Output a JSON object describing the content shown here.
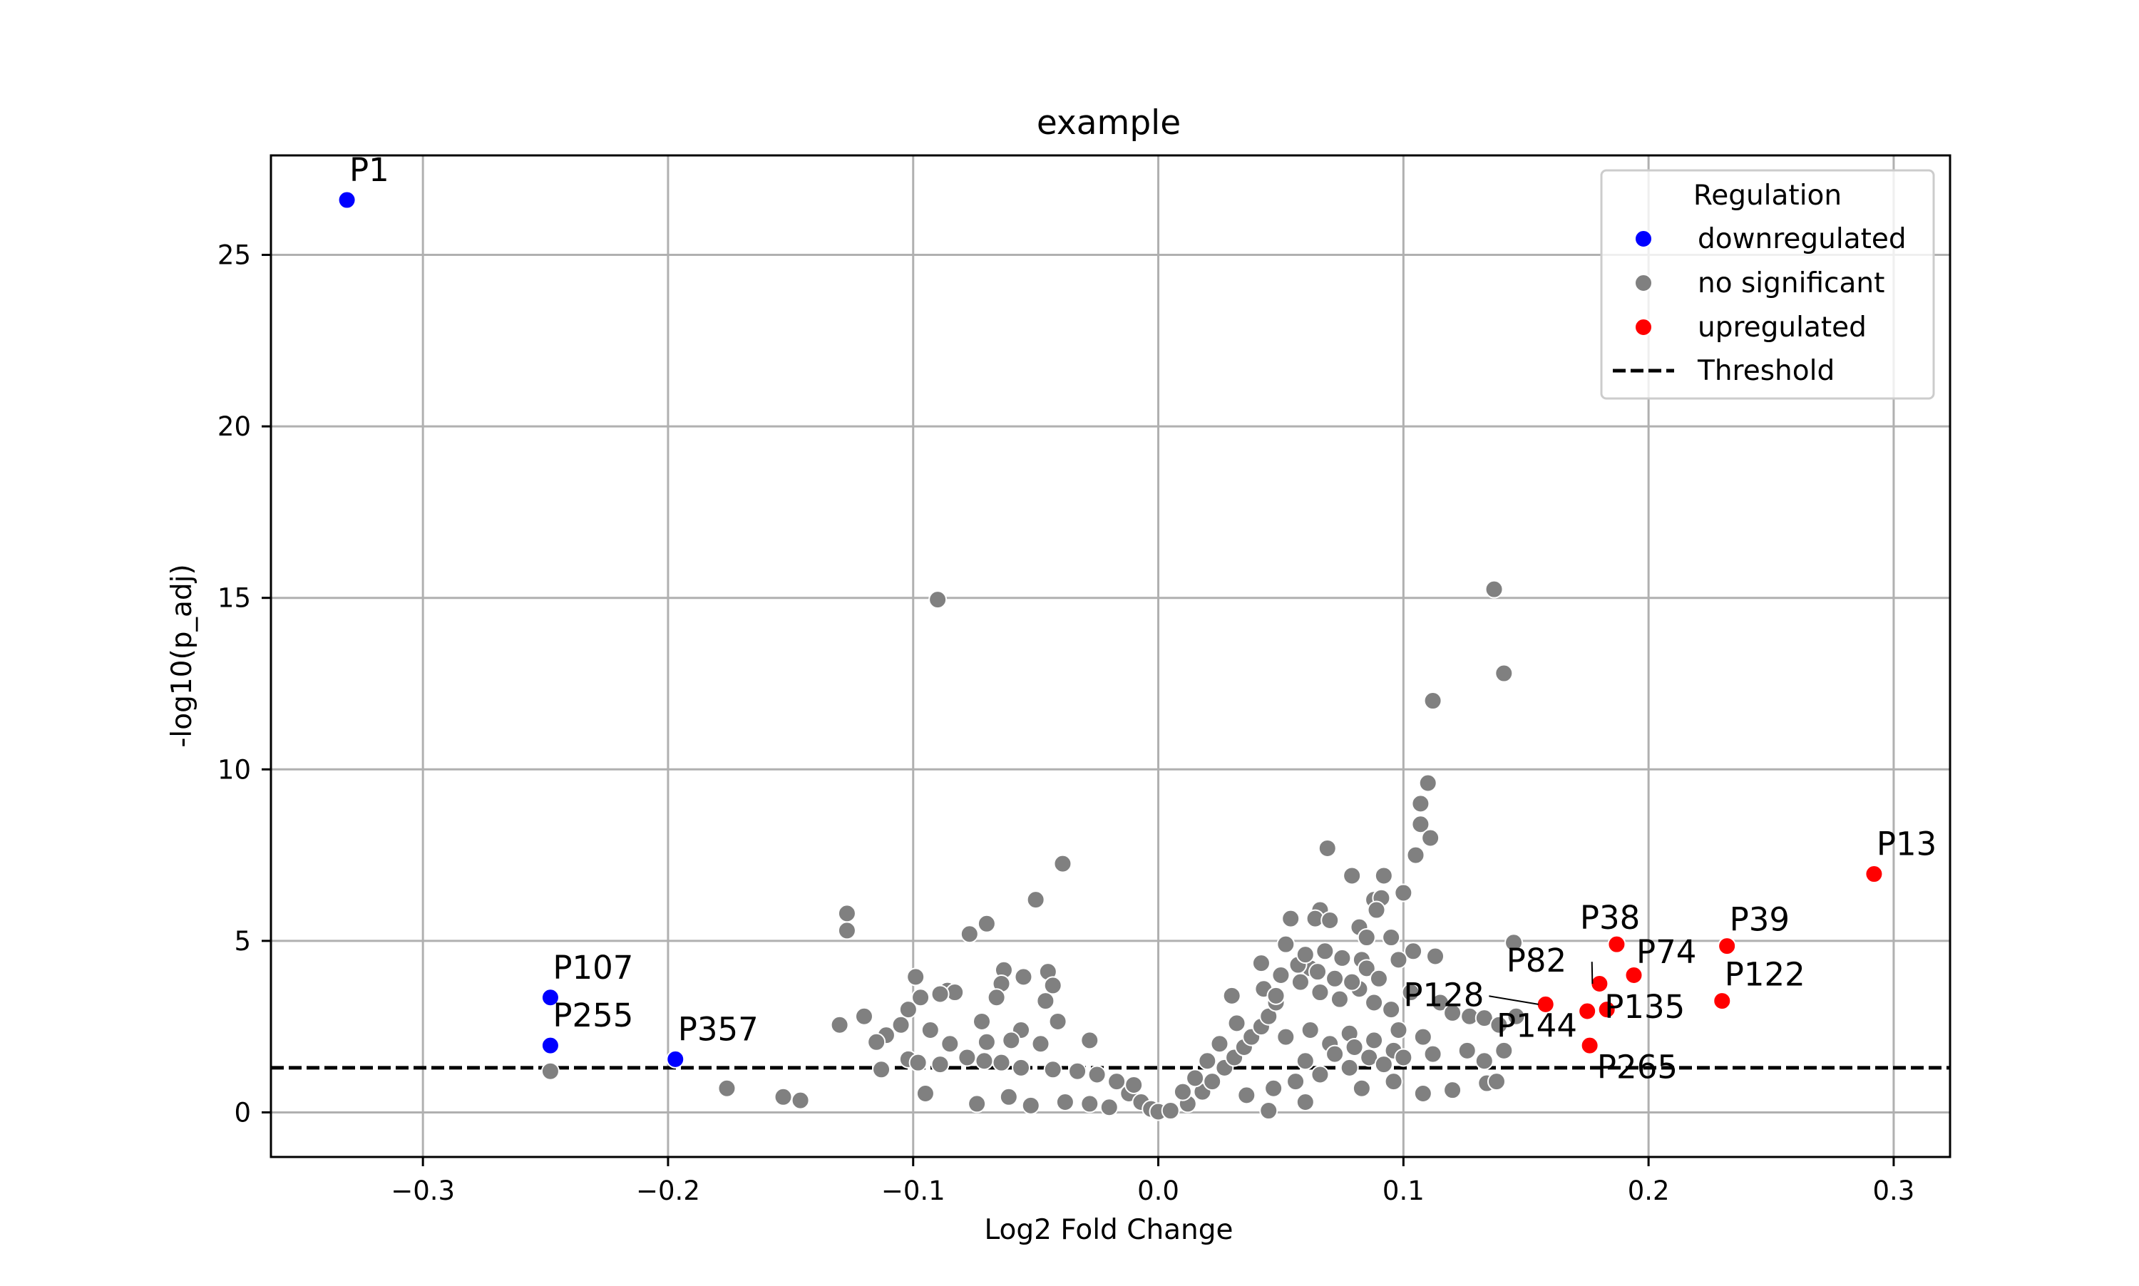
{
  "chart_data": {
    "type": "scatter",
    "title": "example",
    "xlabel": "Log2 Fold Change",
    "ylabel": "-log10(p_adj)",
    "xlim": [
      -0.362,
      0.323
    ],
    "ylim": [
      -1.3,
      27.9
    ],
    "xticks": [
      -0.3,
      -0.2,
      -0.1,
      0.0,
      0.1,
      0.2,
      0.3
    ],
    "xtick_labels": [
      "−0.3",
      "−0.2",
      "−0.1",
      "0.0",
      "0.1",
      "0.2",
      "0.3"
    ],
    "yticks": [
      0,
      5,
      10,
      15,
      20,
      25
    ],
    "ytick_labels": [
      "0",
      "5",
      "10",
      "15",
      "20",
      "25"
    ],
    "grid": true,
    "threshold": 1.3,
    "legend": {
      "title": "Regulation",
      "position": "top-right",
      "entries": [
        {
          "label": "downregulated",
          "kind": "marker",
          "color": "#0000ff"
        },
        {
          "label": "no significant",
          "kind": "marker",
          "color": "#808080"
        },
        {
          "label": "upregulated",
          "kind": "marker",
          "color": "#ff0000"
        },
        {
          "label": "Threshold",
          "kind": "dashed-line",
          "color": "#000000"
        }
      ]
    },
    "series": [
      {
        "name": "downregulated",
        "color": "#0000ff",
        "points": [
          {
            "label": "P1",
            "x": -0.331,
            "y": 26.6
          },
          {
            "label": "P107",
            "x": -0.248,
            "y": 3.35
          },
          {
            "label": "P255",
            "x": -0.248,
            "y": 1.95
          },
          {
            "label": "P357",
            "x": -0.197,
            "y": 1.55
          }
        ]
      },
      {
        "name": "no significant",
        "color": "#808080",
        "points": [
          {
            "x": -0.09,
            "y": 14.95
          },
          {
            "x": 0.137,
            "y": 15.25
          },
          {
            "x": 0.141,
            "y": 12.8
          },
          {
            "x": 0.112,
            "y": 12.0
          },
          {
            "x": 0.11,
            "y": 9.6
          },
          {
            "x": 0.107,
            "y": 9.0
          },
          {
            "x": 0.107,
            "y": 8.4
          },
          {
            "x": 0.111,
            "y": 8.0
          },
          {
            "x": 0.069,
            "y": 7.7
          },
          {
            "x": 0.105,
            "y": 7.5
          },
          {
            "x": -0.039,
            "y": 7.25
          },
          {
            "x": 0.092,
            "y": 6.9
          },
          {
            "x": 0.079,
            "y": 6.9
          },
          {
            "x": 0.1,
            "y": 6.4
          },
          {
            "x": 0.088,
            "y": 6.2
          },
          {
            "x": 0.091,
            "y": 6.25
          },
          {
            "x": -0.05,
            "y": 6.2
          },
          {
            "x": 0.089,
            "y": 5.9
          },
          {
            "x": -0.127,
            "y": 5.8
          },
          {
            "x": -0.127,
            "y": 5.3
          },
          {
            "x": -0.07,
            "y": 5.5
          },
          {
            "x": -0.077,
            "y": 5.2
          },
          {
            "x": 0.066,
            "y": 5.9
          },
          {
            "x": 0.054,
            "y": 5.65
          },
          {
            "x": 0.064,
            "y": 5.65
          },
          {
            "x": 0.07,
            "y": 5.6
          },
          {
            "x": 0.082,
            "y": 5.4
          },
          {
            "x": 0.095,
            "y": 5.1
          },
          {
            "x": 0.085,
            "y": 5.1
          },
          {
            "x": 0.145,
            "y": 4.95
          },
          {
            "x": 0.104,
            "y": 4.7
          },
          {
            "x": 0.113,
            "y": 4.55
          },
          {
            "x": 0.098,
            "y": 4.45
          },
          {
            "x": 0.083,
            "y": 4.45
          },
          {
            "x": 0.062,
            "y": 4.2
          },
          {
            "x": -0.063,
            "y": 4.15
          },
          {
            "x": -0.045,
            "y": 4.1
          },
          {
            "x": -0.055,
            "y": 3.95
          },
          {
            "x": -0.099,
            "y": 3.95
          },
          {
            "x": -0.064,
            "y": 3.75
          },
          {
            "x": -0.043,
            "y": 3.7
          },
          {
            "x": -0.086,
            "y": 3.55
          },
          {
            "x": -0.083,
            "y": 3.5
          },
          {
            "x": -0.089,
            "y": 3.45
          },
          {
            "x": -0.097,
            "y": 3.35
          },
          {
            "x": -0.066,
            "y": 3.35
          },
          {
            "x": -0.046,
            "y": 3.25
          },
          {
            "x": -0.102,
            "y": 3.0
          },
          {
            "x": -0.12,
            "y": 2.8
          },
          {
            "x": -0.13,
            "y": 2.55
          },
          {
            "x": -0.105,
            "y": 2.55
          },
          {
            "x": -0.072,
            "y": 2.65
          },
          {
            "x": -0.056,
            "y": 2.4
          },
          {
            "x": -0.041,
            "y": 2.65
          },
          {
            "x": -0.093,
            "y": 2.4
          },
          {
            "x": -0.111,
            "y": 2.25
          },
          {
            "x": -0.115,
            "y": 2.05
          },
          {
            "x": -0.085,
            "y": 2.0
          },
          {
            "x": -0.07,
            "y": 2.05
          },
          {
            "x": -0.06,
            "y": 2.1
          },
          {
            "x": -0.048,
            "y": 2.0
          },
          {
            "x": -0.028,
            "y": 2.1
          },
          {
            "x": -0.102,
            "y": 1.55
          },
          {
            "x": -0.098,
            "y": 1.45
          },
          {
            "x": -0.113,
            "y": 1.25
          },
          {
            "x": -0.089,
            "y": 1.4
          },
          {
            "x": -0.071,
            "y": 1.5
          },
          {
            "x": -0.078,
            "y": 1.6
          },
          {
            "x": -0.064,
            "y": 1.45
          },
          {
            "x": -0.056,
            "y": 1.3
          },
          {
            "x": -0.043,
            "y": 1.25
          },
          {
            "x": -0.033,
            "y": 1.2
          },
          {
            "x": -0.025,
            "y": 1.1
          },
          {
            "x": -0.017,
            "y": 0.9
          },
          {
            "x": -0.012,
            "y": 0.55
          },
          {
            "x": -0.007,
            "y": 0.3
          },
          {
            "x": -0.003,
            "y": 0.1
          },
          {
            "x": 0.0,
            "y": 0.02
          },
          {
            "x": -0.176,
            "y": 0.7
          },
          {
            "x": -0.153,
            "y": 0.45
          },
          {
            "x": -0.146,
            "y": 0.35
          },
          {
            "x": -0.095,
            "y": 0.55
          },
          {
            "x": -0.074,
            "y": 0.25
          },
          {
            "x": -0.061,
            "y": 0.45
          },
          {
            "x": -0.052,
            "y": 0.2
          },
          {
            "x": -0.038,
            "y": 0.3
          },
          {
            "x": -0.028,
            "y": 0.25
          },
          {
            "x": -0.02,
            "y": 0.15
          },
          {
            "x": -0.01,
            "y": 0.8
          },
          {
            "x": -0.248,
            "y": 1.2
          },
          {
            "x": 0.005,
            "y": 0.05
          },
          {
            "x": 0.012,
            "y": 0.25
          },
          {
            "x": 0.018,
            "y": 0.6
          },
          {
            "x": 0.022,
            "y": 0.9
          },
          {
            "x": 0.027,
            "y": 1.3
          },
          {
            "x": 0.031,
            "y": 1.6
          },
          {
            "x": 0.035,
            "y": 1.9
          },
          {
            "x": 0.038,
            "y": 2.2
          },
          {
            "x": 0.042,
            "y": 2.5
          },
          {
            "x": 0.045,
            "y": 2.8
          },
          {
            "x": 0.048,
            "y": 3.2
          },
          {
            "x": 0.03,
            "y": 3.4
          },
          {
            "x": 0.043,
            "y": 3.6
          },
          {
            "x": 0.05,
            "y": 4.0
          },
          {
            "x": 0.042,
            "y": 4.35
          },
          {
            "x": 0.057,
            "y": 4.3
          },
          {
            "x": 0.048,
            "y": 3.4
          },
          {
            "x": 0.058,
            "y": 3.8
          },
          {
            "x": 0.066,
            "y": 3.5
          },
          {
            "x": 0.074,
            "y": 3.3
          },
          {
            "x": 0.082,
            "y": 3.6
          },
          {
            "x": 0.088,
            "y": 3.2
          },
          {
            "x": 0.095,
            "y": 3.0
          },
          {
            "x": 0.103,
            "y": 3.5
          },
          {
            "x": 0.115,
            "y": 3.2
          },
          {
            "x": 0.12,
            "y": 2.9
          },
          {
            "x": 0.127,
            "y": 2.8
          },
          {
            "x": 0.133,
            "y": 2.75
          },
          {
            "x": 0.139,
            "y": 2.55
          },
          {
            "x": 0.146,
            "y": 2.8
          },
          {
            "x": 0.141,
            "y": 1.8
          },
          {
            "x": 0.133,
            "y": 1.5
          },
          {
            "x": 0.126,
            "y": 1.8
          },
          {
            "x": 0.112,
            "y": 1.7
          },
          {
            "x": 0.096,
            "y": 1.8
          },
          {
            "x": 0.086,
            "y": 1.6
          },
          {
            "x": 0.078,
            "y": 1.3
          },
          {
            "x": 0.066,
            "y": 1.1
          },
          {
            "x": 0.056,
            "y": 0.9
          },
          {
            "x": 0.047,
            "y": 0.7
          },
          {
            "x": 0.036,
            "y": 0.5
          },
          {
            "x": 0.045,
            "y": 0.05
          },
          {
            "x": 0.06,
            "y": 0.3
          },
          {
            "x": 0.083,
            "y": 0.7
          },
          {
            "x": 0.096,
            "y": 0.9
          },
          {
            "x": 0.108,
            "y": 0.55
          },
          {
            "x": 0.12,
            "y": 0.65
          },
          {
            "x": 0.134,
            "y": 0.85
          },
          {
            "x": 0.138,
            "y": 0.9
          },
          {
            "x": 0.052,
            "y": 2.2
          },
          {
            "x": 0.062,
            "y": 2.4
          },
          {
            "x": 0.07,
            "y": 2.0
          },
          {
            "x": 0.078,
            "y": 2.3
          },
          {
            "x": 0.088,
            "y": 2.1
          },
          {
            "x": 0.098,
            "y": 2.4
          },
          {
            "x": 0.108,
            "y": 2.2
          },
          {
            "x": 0.06,
            "y": 1.5
          },
          {
            "x": 0.072,
            "y": 1.7
          },
          {
            "x": 0.08,
            "y": 1.9
          },
          {
            "x": 0.092,
            "y": 1.4
          },
          {
            "x": 0.1,
            "y": 1.6
          },
          {
            "x": 0.052,
            "y": 4.9
          },
          {
            "x": 0.06,
            "y": 4.6
          },
          {
            "x": 0.068,
            "y": 4.7
          },
          {
            "x": 0.075,
            "y": 4.5
          },
          {
            "x": 0.085,
            "y": 4.2
          },
          {
            "x": 0.065,
            "y": 4.1
          },
          {
            "x": 0.072,
            "y": 3.9
          },
          {
            "x": 0.079,
            "y": 3.8
          },
          {
            "x": 0.09,
            "y": 3.9
          },
          {
            "x": 0.032,
            "y": 2.6
          },
          {
            "x": 0.025,
            "y": 2.0
          },
          {
            "x": 0.02,
            "y": 1.5
          },
          {
            "x": 0.015,
            "y": 1.0
          },
          {
            "x": 0.01,
            "y": 0.6
          }
        ]
      },
      {
        "name": "upregulated",
        "color": "#ff0000",
        "points": [
          {
            "label": "P13",
            "x": 0.292,
            "y": 6.95
          },
          {
            "label": "P39",
            "x": 0.232,
            "y": 4.85
          },
          {
            "label": "P122",
            "x": 0.23,
            "y": 3.25
          },
          {
            "label": "P38",
            "x": 0.187,
            "y": 4.9
          },
          {
            "label": "P74",
            "x": 0.194,
            "y": 4.0
          },
          {
            "label": "P82",
            "x": 0.18,
            "y": 3.75
          },
          {
            "label": "P135",
            "x": 0.183,
            "y": 3.0
          },
          {
            "label": "P144",
            "x": 0.175,
            "y": 2.95
          },
          {
            "label": "P128",
            "x": 0.158,
            "y": 3.15
          },
          {
            "label": "P265",
            "x": 0.176,
            "y": 1.95
          }
        ]
      }
    ],
    "annotations": [
      {
        "text": "P1",
        "x": -0.331,
        "y": 26.6,
        "dx": 0.001,
        "dy": 0.55,
        "leader": false
      },
      {
        "text": "P107",
        "x": -0.248,
        "y": 3.35,
        "dx": 0.001,
        "dy": 0.55,
        "leader": false
      },
      {
        "text": "P255",
        "x": -0.248,
        "y": 1.95,
        "dx": 0.001,
        "dy": 0.55,
        "leader": false
      },
      {
        "text": "P357",
        "x": -0.197,
        "y": 1.55,
        "dx": 0.001,
        "dy": 0.55,
        "leader": false
      },
      {
        "text": "P13",
        "x": 0.292,
        "y": 6.95,
        "dx": 0.001,
        "dy": 0.55,
        "leader": false
      },
      {
        "text": "P39",
        "x": 0.232,
        "y": 4.85,
        "dx": 0.001,
        "dy": 0.45,
        "leader": false
      },
      {
        "text": "P122",
        "x": 0.23,
        "y": 3.25,
        "dx": 0.001,
        "dy": 0.45,
        "leader": false
      },
      {
        "text": "P38",
        "x": 0.187,
        "y": 4.9,
        "dx": -0.015,
        "dy": 0.45,
        "leader": false
      },
      {
        "text": "P74",
        "x": 0.194,
        "y": 4.0,
        "dx": 0.001,
        "dy": 0.35,
        "leader": false
      },
      {
        "text": "P82",
        "x": 0.18,
        "y": 3.75,
        "dx": -0.038,
        "dy": 0.35,
        "leader": true
      },
      {
        "text": "P135",
        "x": 0.183,
        "y": 3.0,
        "dx": -0.001,
        "dy": -0.25,
        "leader": false
      },
      {
        "text": "P144",
        "x": 0.175,
        "y": 2.95,
        "dx": -0.037,
        "dy": -0.75,
        "leader": false
      },
      {
        "text": "P128",
        "x": 0.158,
        "y": 3.15,
        "dx": -0.058,
        "dy": -0.05,
        "leader": true
      },
      {
        "text": "P265",
        "x": 0.176,
        "y": 1.95,
        "dx": 0.003,
        "dy": -0.95,
        "leader": false
      }
    ]
  }
}
